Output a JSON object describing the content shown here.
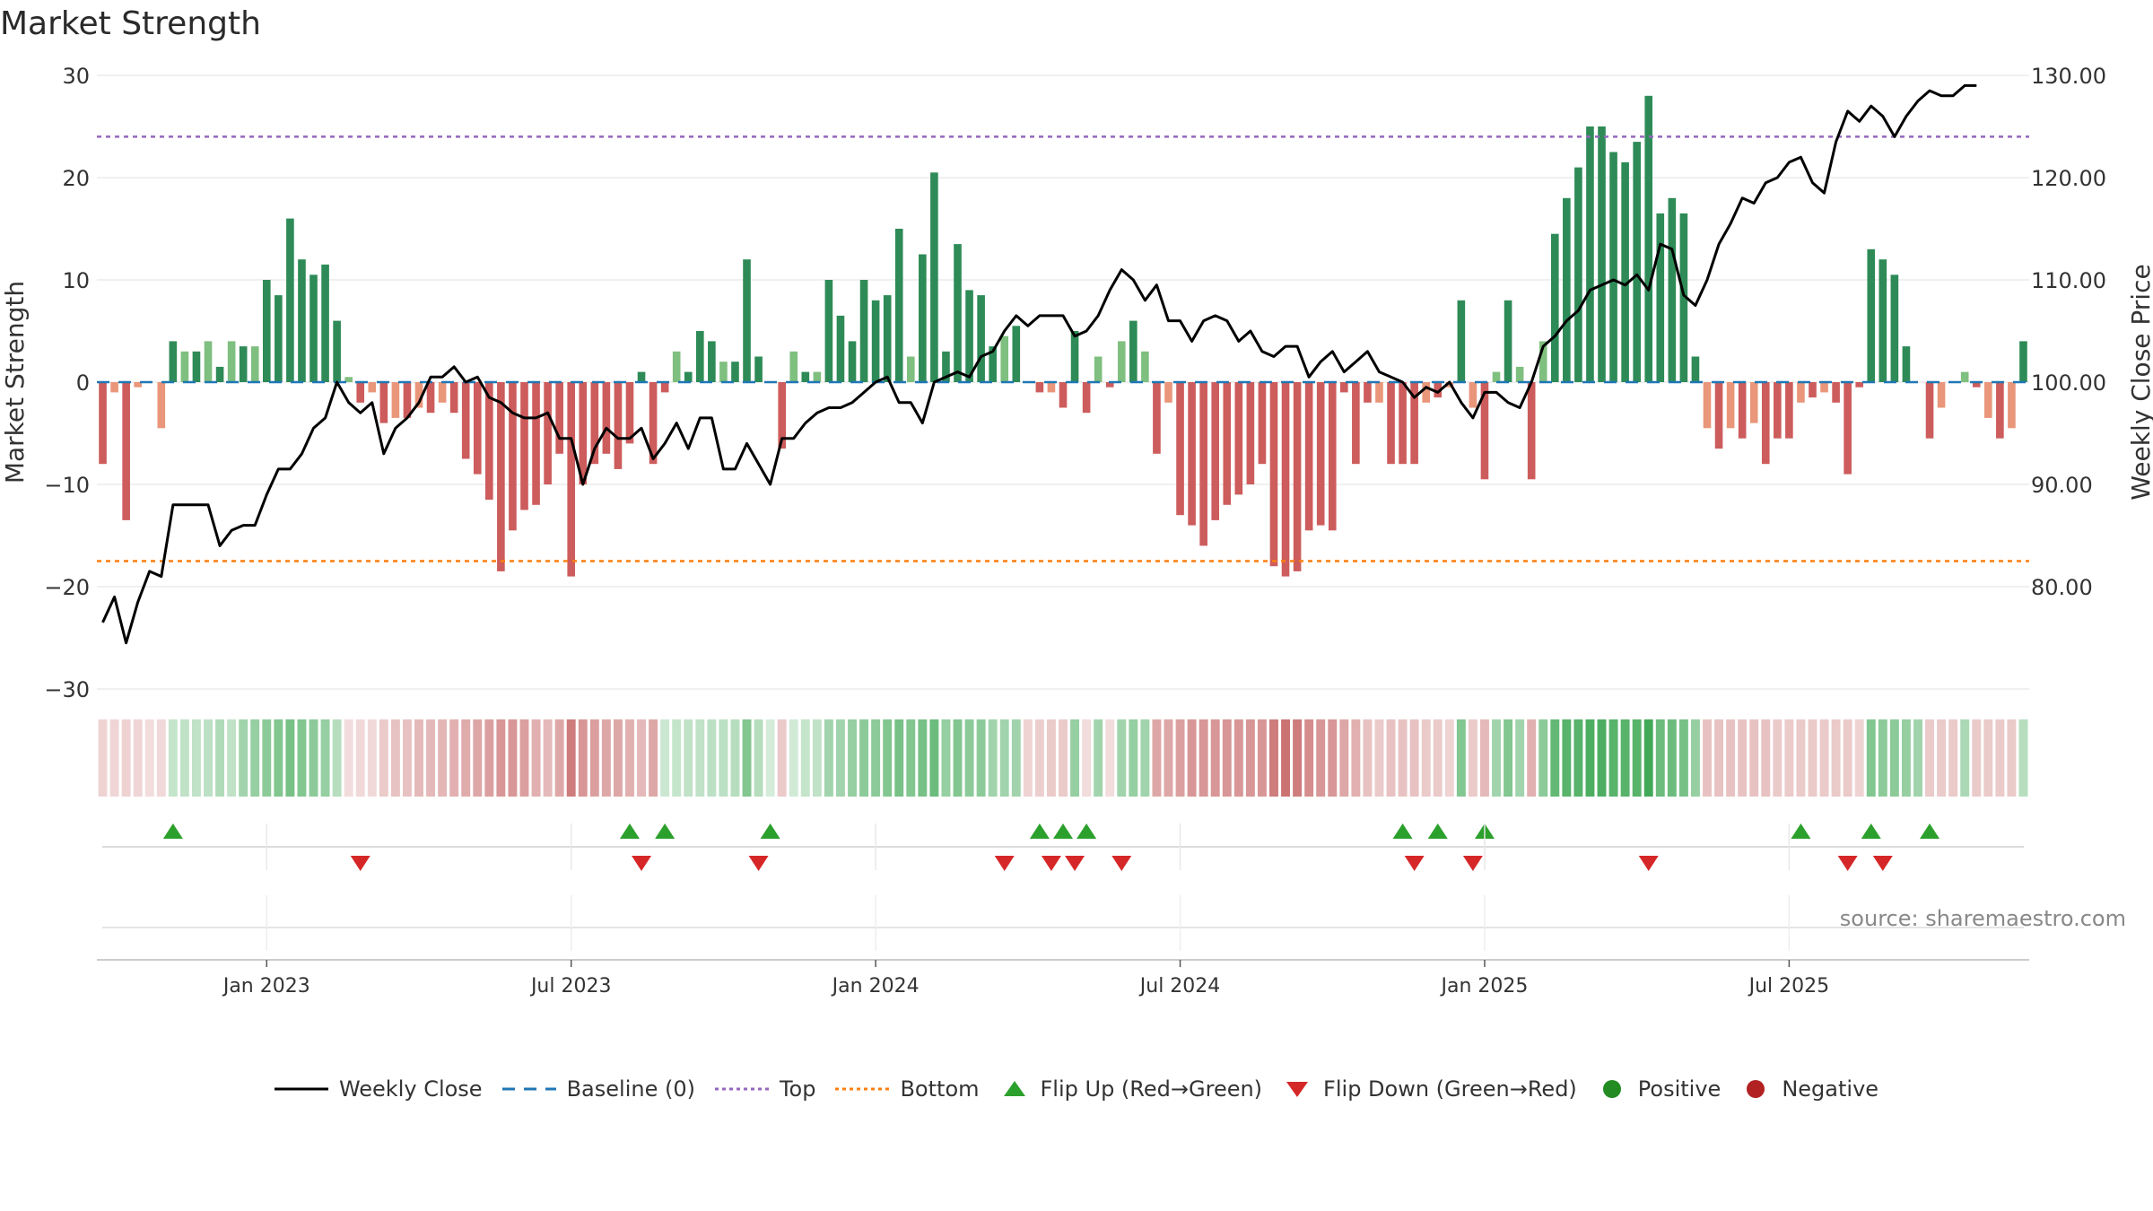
{
  "chart_data": {
    "type": "bar",
    "title": "Market Strength",
    "ylabel_left": "Market Strength",
    "ylabel_right": "Weekly Close Price",
    "ylim_left": [
      -30,
      30
    ],
    "ylim_right": [
      70,
      130
    ],
    "left_ticks": [
      "30",
      "20",
      "10",
      "0",
      "−10",
      "−20",
      "−30"
    ],
    "left_tick_values": [
      30,
      20,
      10,
      0,
      -10,
      -20,
      -30
    ],
    "right_ticks": [
      "130.00",
      "120.00",
      "110.00",
      "100.00",
      "90.00",
      "80.00"
    ],
    "right_tick_values": [
      130,
      120,
      110,
      100,
      90,
      80
    ],
    "x_ticks": [
      {
        "label": "Jan 2023",
        "week": 14.5
      },
      {
        "label": "Jul 2023",
        "week": 40.5
      },
      {
        "label": "Jan 2024",
        "week": 66.5
      },
      {
        "label": "Jul 2024",
        "week": 92.5
      },
      {
        "label": "Jan 2025",
        "week": 118.5
      },
      {
        "label": "Jul 2025",
        "week": 144.5
      }
    ],
    "top_line": 24,
    "bottom_line": -17.5,
    "baseline": 0,
    "strength": [
      -8,
      -1,
      -13.5,
      -0.5,
      0,
      -4.5,
      4,
      3,
      3,
      4,
      1.5,
      4,
      3.5,
      3.5,
      10,
      8.5,
      16,
      12,
      10.5,
      11.5,
      6,
      0.5,
      -2,
      -1,
      -4,
      -3.5,
      -3.5,
      -2.5,
      -3,
      -2,
      -3,
      -7.5,
      -9,
      -11.5,
      -18.5,
      -14.5,
      -12.5,
      -12,
      -10,
      -7,
      -19,
      -10,
      -8,
      -7,
      -8.5,
      -6,
      1,
      -8,
      -1,
      3,
      1,
      5,
      4,
      2,
      2,
      12,
      2.5,
      0,
      -6.5,
      3,
      1,
      1,
      10,
      6.5,
      4,
      10,
      8,
      8.5,
      15,
      2.5,
      12.5,
      20.5,
      3,
      13.5,
      9,
      8.5,
      3.5,
      4.5,
      5.5,
      0,
      -1,
      -1,
      -2.5,
      5,
      -3,
      2.5,
      -0.5,
      4,
      6,
      3,
      -7,
      -2,
      -13,
      -14,
      -16,
      -13.5,
      -12,
      -11,
      -10,
      -8,
      -18,
      -19,
      -18.5,
      -14.5,
      -14,
      -14.5,
      -1,
      -8,
      -2,
      -2,
      -8,
      -8,
      -8,
      -2,
      -1.5,
      -0.5,
      8,
      -2.5,
      -9.5,
      1,
      8,
      1.5,
      -9.5,
      4,
      14.5,
      18,
      21,
      25,
      25,
      22.5,
      21.5,
      23.5,
      28,
      16.5,
      18,
      16.5,
      2.5,
      -4.5,
      -6.5,
      -4.5,
      -5.5,
      -4,
      -8,
      -5.5,
      -5.5,
      -2,
      -1.5,
      -1,
      -2,
      -9,
      -0.5,
      13,
      12,
      10.5,
      3.5,
      0,
      -5.5,
      -2.5,
      0,
      1,
      -0.5,
      -3.5,
      -5.5,
      -4.5,
      4
    ],
    "weekly_close": [
      76.5,
      79,
      74.5,
      78.5,
      81.5,
      81,
      88,
      88,
      88,
      88,
      84,
      85.5,
      86,
      86,
      89,
      91.5,
      91.5,
      93,
      95.5,
      96.5,
      100,
      98,
      97,
      98,
      93,
      95.5,
      96.5,
      98,
      100.5,
      100.5,
      101.5,
      100,
      100.5,
      98.5,
      98,
      97,
      96.5,
      96.5,
      97,
      94.5,
      94.5,
      90,
      93.5,
      95.5,
      94.5,
      94.5,
      95.5,
      92.5,
      94,
      96,
      93.5,
      96.5,
      96.5,
      91.5,
      91.5,
      94,
      92,
      90,
      94.5,
      94.5,
      96,
      97,
      97.5,
      97.5,
      98,
      99,
      100,
      100.5,
      98,
      98,
      96,
      100,
      100.5,
      101,
      100.5,
      102.5,
      103,
      105,
      106.5,
      105.5,
      106.5,
      106.5,
      106.5,
      104.5,
      105,
      106.5,
      109,
      111,
      110,
      108,
      109.5,
      106,
      106,
      104,
      106,
      106.5,
      106,
      104,
      105,
      103,
      102.5,
      103.5,
      103.5,
      100.5,
      102,
      103,
      101,
      102,
      103,
      101,
      100.5,
      100,
      98.5,
      99.5,
      99,
      100,
      98,
      96.5,
      99,
      99,
      98,
      97.5,
      100,
      103.5,
      104.5,
      106,
      107,
      109,
      109.5,
      110,
      109.5,
      110.5,
      109,
      113.5,
      113,
      108.5,
      107.5,
      110,
      113.5,
      115.5,
      118,
      117.5,
      119.5,
      120,
      121.5,
      122,
      119.5,
      118.5,
      123.5,
      126.5,
      125.5,
      127,
      126,
      124,
      126,
      127.5,
      128.5,
      128,
      128,
      129,
      129
    ],
    "rail": [
      -0.25,
      -0.24,
      -0.26,
      -0.24,
      -0.2,
      -0.22,
      0.28,
      0.3,
      0.3,
      0.32,
      0.38,
      0.3,
      0.45,
      0.5,
      0.55,
      0.6,
      0.65,
      0.6,
      0.55,
      0.5,
      0.35,
      -0.2,
      -0.22,
      -0.22,
      -0.3,
      -0.35,
      -0.35,
      -0.4,
      -0.4,
      -0.42,
      -0.45,
      -0.48,
      -0.5,
      -0.55,
      -0.6,
      -0.6,
      -0.55,
      -0.45,
      -0.4,
      -0.5,
      -0.75,
      -0.6,
      -0.55,
      -0.5,
      -0.5,
      -0.45,
      -0.4,
      -0.5,
      0.25,
      0.28,
      0.3,
      0.3,
      0.32,
      0.32,
      0.35,
      0.6,
      0.35,
      0.2,
      -0.3,
      0.22,
      0.28,
      0.3,
      0.45,
      0.45,
      0.5,
      0.55,
      0.55,
      0.6,
      0.65,
      0.6,
      0.65,
      0.7,
      0.5,
      0.6,
      0.55,
      0.55,
      0.45,
      0.45,
      0.45,
      -0.25,
      -0.28,
      -0.3,
      -0.3,
      0.5,
      -0.2,
      0.45,
      -0.2,
      0.45,
      0.5,
      0.45,
      -0.5,
      -0.5,
      -0.55,
      -0.6,
      -0.6,
      -0.6,
      -0.6,
      -0.6,
      -0.6,
      -0.6,
      -0.75,
      -0.8,
      -0.75,
      -0.65,
      -0.6,
      -0.6,
      -0.5,
      -0.45,
      -0.35,
      -0.3,
      -0.35,
      -0.35,
      -0.35,
      -0.3,
      -0.3,
      -0.25,
      0.6,
      -0.3,
      -0.4,
      0.45,
      0.6,
      0.45,
      -0.45,
      0.55,
      0.75,
      0.8,
      0.8,
      0.85,
      0.85,
      0.8,
      0.8,
      0.8,
      0.9,
      0.7,
      0.7,
      0.65,
      0.5,
      -0.35,
      -0.35,
      -0.35,
      -0.35,
      -0.35,
      -0.35,
      -0.3,
      -0.3,
      -0.3,
      -0.3,
      -0.3,
      -0.3,
      -0.3,
      -0.25,
      0.6,
      0.55,
      0.55,
      0.5,
      0.45,
      -0.3,
      -0.3,
      -0.3,
      0.4,
      -0.3,
      -0.3,
      -0.3,
      -0.3,
      0.35
    ],
    "flip_up_weeks": [
      6,
      45,
      48,
      57,
      80,
      82,
      84,
      111,
      114,
      118,
      145,
      151,
      156
    ],
    "flip_down_weeks": [
      22,
      46,
      56,
      77,
      81,
      83,
      87,
      112,
      117,
      132,
      149,
      152
    ],
    "colors": {
      "strong_pos": "#2e8b57",
      "weak_pos": "#7fbf7f",
      "strong_neg": "#cd5c5c",
      "weak_neg": "#e9967a",
      "line": "#000000",
      "baseline": "#1f77b4",
      "top": "#9467bd",
      "bottom": "#ff7f0e",
      "flip_up": "#2ca02c",
      "flip_down": "#d62728",
      "positive": "#228b22",
      "negative": "#b22222"
    }
  },
  "source": "source: sharemaestro.com",
  "legend": [
    {
      "key": "weekly-close",
      "label": "Weekly Close"
    },
    {
      "key": "baseline",
      "label": "Baseline (0)"
    },
    {
      "key": "top",
      "label": "Top"
    },
    {
      "key": "bottom",
      "label": "Bottom"
    },
    {
      "key": "flip-up",
      "label": "Flip Up (Red→Green)"
    },
    {
      "key": "flip-down",
      "label": "Flip Down (Green→Red)"
    },
    {
      "key": "positive",
      "label": "Positive"
    },
    {
      "key": "negative",
      "label": "Negative"
    }
  ]
}
